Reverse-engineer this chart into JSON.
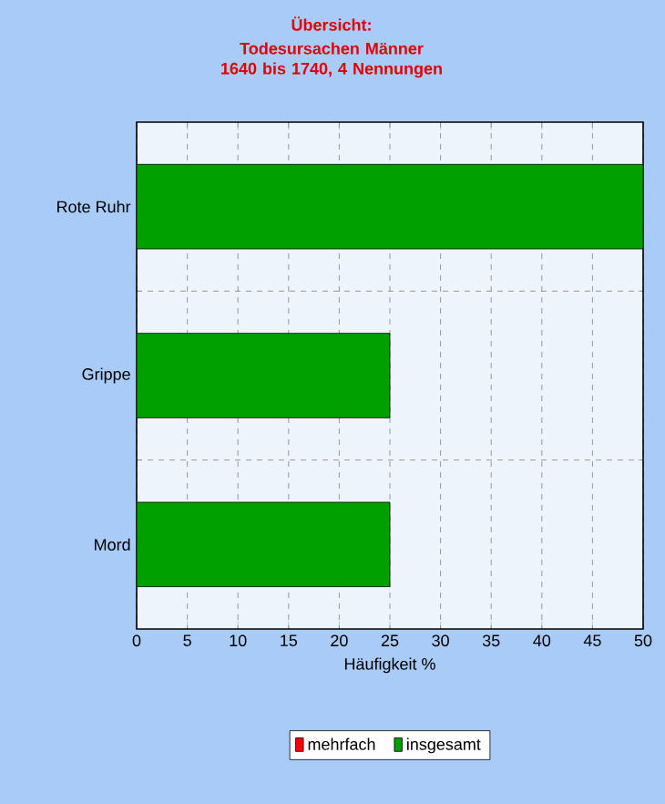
{
  "chart_data": {
    "type": "bar",
    "orientation": "horizontal",
    "stacked": true,
    "title": "Übersicht:",
    "subtitle": "Todesursachen Männer 1640 bis 1740, 4 Nennungen",
    "xlabel": "Häufigkeit %",
    "categories": [
      "Rote Ruhr",
      "Grippe",
      "Mord"
    ],
    "series": [
      {
        "name": "mehrfach",
        "color": "#ff0000",
        "values": [
          0,
          0,
          0
        ]
      },
      {
        "name": "insgesamt",
        "color": "#00a000",
        "values": [
          50,
          25,
          25
        ]
      }
    ],
    "xlim": [
      0,
      50
    ],
    "xticks": [
      0,
      5,
      10,
      15,
      20,
      25,
      30,
      35,
      40,
      45,
      50
    ],
    "grid": true,
    "legend": "bottom"
  }
}
